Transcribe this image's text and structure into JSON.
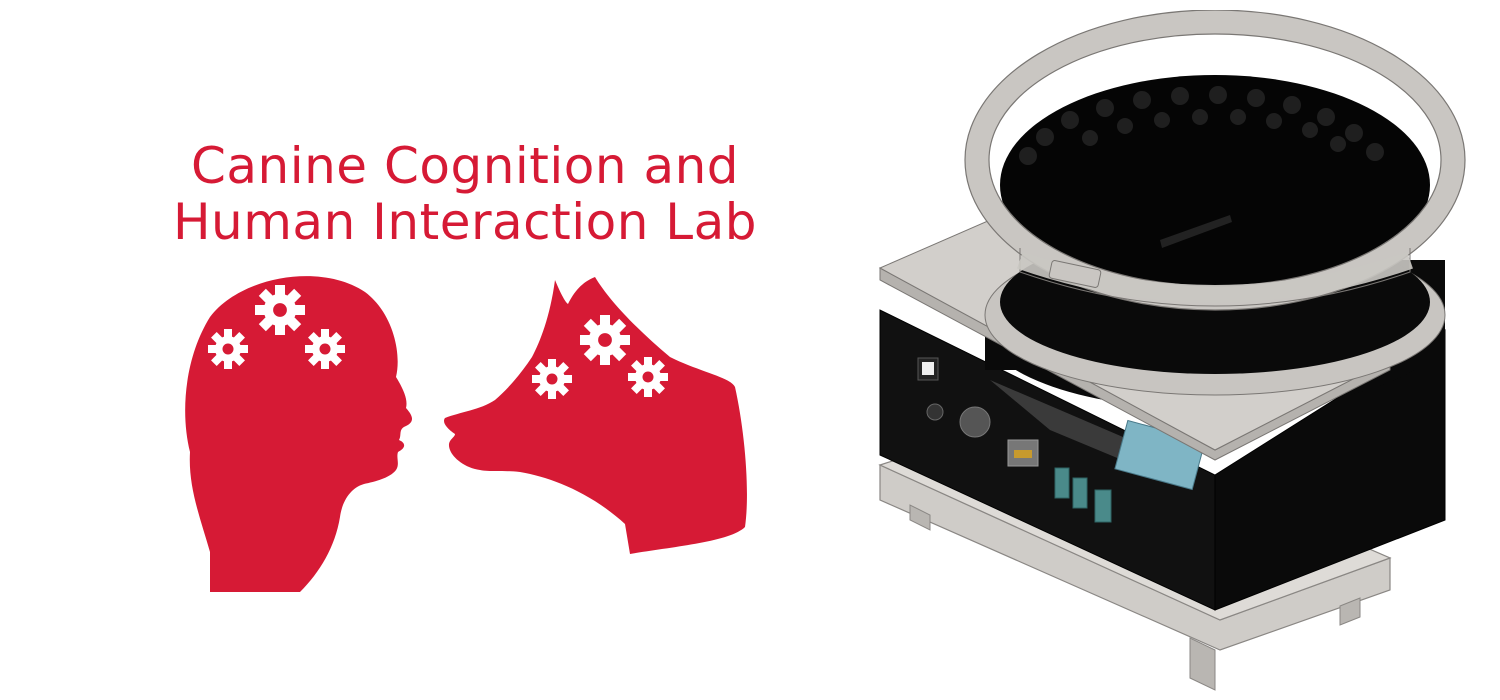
{
  "logo": {
    "title_line_1": "Canine Cognition and",
    "title_line_2": "Human Interaction Lab",
    "icons": [
      "human-head-icon",
      "dog-head-icon",
      "gear-icon"
    ]
  },
  "device": {
    "icon": "feeder-device-render"
  },
  "colors": {
    "brand_red": "#d61a35",
    "background": "#ffffff",
    "device_black": "#0a0a0a",
    "device_grey": "#c9c6c2"
  }
}
